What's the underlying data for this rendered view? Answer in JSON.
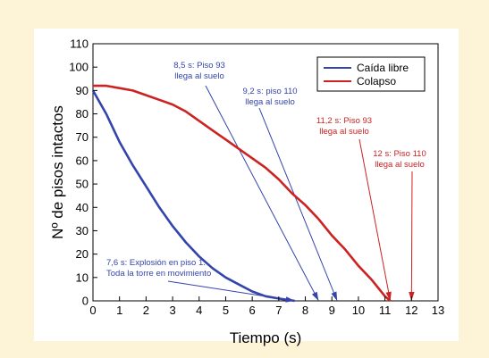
{
  "chart_data": {
    "type": "line",
    "xlabel": "Tiempo (s)",
    "ylabel": "Nº de pisos intactos",
    "xlim": [
      0,
      13
    ],
    "ylim": [
      0,
      110
    ],
    "xticks": [
      0,
      1,
      2,
      3,
      4,
      5,
      6,
      7,
      8,
      9,
      10,
      11,
      12,
      13
    ],
    "yticks": [
      0,
      10,
      20,
      30,
      40,
      50,
      60,
      70,
      80,
      90,
      100,
      110
    ],
    "grid": false,
    "legend_position": "top-right",
    "series": [
      {
        "name": "Caída libre",
        "color": "#3344aa",
        "x": [
          0,
          0.5,
          1,
          1.5,
          2,
          2.5,
          3,
          3.5,
          4,
          4.5,
          5,
          5.5,
          6,
          6.5,
          7,
          7.6
        ],
        "y": [
          90,
          80,
          68,
          58,
          49,
          40,
          32,
          25,
          19,
          14,
          10,
          7,
          4,
          2,
          1,
          0
        ]
      },
      {
        "name": "Colapso",
        "color": "#cc2222",
        "x": [
          0,
          0.5,
          1,
          1.5,
          2,
          2.5,
          3,
          3.5,
          4,
          4.5,
          5,
          5.5,
          6,
          6.5,
          7,
          7.5,
          8,
          8.5,
          9,
          9.5,
          10,
          10.5,
          11,
          11.2
        ],
        "y": [
          92,
          92,
          91,
          90,
          88,
          86,
          84,
          81,
          77,
          73,
          69,
          65,
          61,
          57,
          52,
          46,
          41,
          35,
          28,
          22,
          15,
          9,
          2,
          0
        ]
      }
    ],
    "annotations": [
      {
        "id": "free-fall-start",
        "lines": [
          "7,6 s: Explosión en piso 1.",
          "Toda la torre en movimiento"
        ],
        "color": "#3344aa",
        "point": [
          7.6,
          0
        ]
      },
      {
        "id": "floor93-ground",
        "lines": [
          "8,5 s: Piso 93",
          "llega al suelo"
        ],
        "color": "#3344aa",
        "point": [
          8.5,
          0
        ]
      },
      {
        "id": "floor110-ground",
        "lines": [
          "9,2 s: piso 110",
          "llega al suelo"
        ],
        "color": "#3344aa",
        "point": [
          9.2,
          0
        ]
      },
      {
        "id": "collapse93-ground",
        "lines": [
          "11,2 s: Piso 93",
          "llega al suelo"
        ],
        "color": "#cc2222",
        "point": [
          11.2,
          0
        ]
      },
      {
        "id": "collapse110-ground",
        "lines": [
          "12 s: Piso 110",
          "llega al suelo"
        ],
        "color": "#cc2222",
        "point": [
          12,
          0
        ]
      }
    ]
  }
}
